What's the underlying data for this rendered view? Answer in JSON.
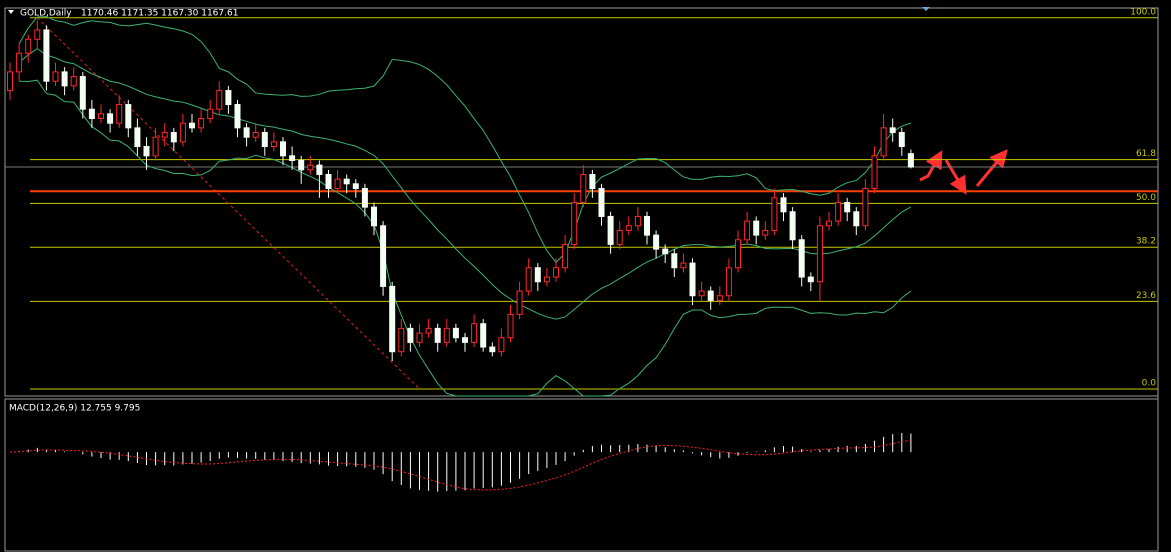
{
  "chart_data": {
    "type": "candlestick",
    "symbol": "GOLD,Daily",
    "ohlc_text": "1170.46 1171.35 1167.30 1167.61",
    "candles": [
      [
        1184,
        1190,
        1182,
        1188
      ],
      [
        1188,
        1194,
        1186,
        1192
      ],
      [
        1192,
        1196,
        1190,
        1195
      ],
      [
        1195,
        1199,
        1193,
        1197
      ],
      [
        1197,
        1198,
        1184,
        1186
      ],
      [
        1186,
        1190,
        1185,
        1188
      ],
      [
        1188,
        1189,
        1183,
        1185
      ],
      [
        1185,
        1189,
        1184,
        1187
      ],
      [
        1187,
        1188,
        1178,
        1180
      ],
      [
        1180,
        1182,
        1176,
        1178
      ],
      [
        1178,
        1181,
        1177,
        1179
      ],
      [
        1179,
        1180,
        1175,
        1177
      ],
      [
        1177,
        1183,
        1176,
        1181
      ],
      [
        1181,
        1182,
        1174,
        1176
      ],
      [
        1176,
        1178,
        1170,
        1172
      ],
      [
        1172,
        1174,
        1167,
        1170
      ],
      [
        1170,
        1176,
        1169,
        1174
      ],
      [
        1174,
        1177,
        1172,
        1175
      ],
      [
        1175,
        1176,
        1171,
        1173
      ],
      [
        1173,
        1179,
        1172,
        1177
      ],
      [
        1177,
        1179,
        1175,
        1176
      ],
      [
        1176,
        1180,
        1175,
        1178
      ],
      [
        1178,
        1182,
        1177,
        1180
      ],
      [
        1180,
        1186,
        1179,
        1184
      ],
      [
        1184,
        1185,
        1179,
        1181
      ],
      [
        1181,
        1182,
        1174,
        1176
      ],
      [
        1176,
        1177,
        1172,
        1174
      ],
      [
        1174,
        1177,
        1173,
        1175
      ],
      [
        1175,
        1176,
        1170,
        1172
      ],
      [
        1172,
        1175,
        1171,
        1173
      ],
      [
        1173,
        1174,
        1168,
        1170
      ],
      [
        1170,
        1172,
        1167,
        1169
      ],
      [
        1169,
        1170,
        1164,
        1167
      ],
      [
        1167,
        1170,
        1166,
        1168
      ],
      [
        1168,
        1169,
        1161,
        1166
      ],
      [
        1166,
        1167,
        1161,
        1163
      ],
      [
        1163,
        1167,
        1162,
        1165
      ],
      [
        1165,
        1166,
        1162,
        1164
      ],
      [
        1164,
        1165,
        1161,
        1163
      ],
      [
        1163,
        1164,
        1157,
        1159
      ],
      [
        1159,
        1160,
        1153,
        1155
      ],
      [
        1155,
        1156,
        1140,
        1142
      ],
      [
        1142,
        1143,
        1126,
        1128
      ],
      [
        1128,
        1135,
        1127,
        1133
      ],
      [
        1133,
        1134,
        1128,
        1130
      ],
      [
        1130,
        1134,
        1129,
        1132
      ],
      [
        1132,
        1135,
        1131,
        1133
      ],
      [
        1133,
        1134,
        1128,
        1130
      ],
      [
        1130,
        1135,
        1129,
        1133
      ],
      [
        1133,
        1134,
        1130,
        1131
      ],
      [
        1131,
        1132,
        1128,
        1130
      ],
      [
        1130,
        1136,
        1129,
        1134
      ],
      [
        1134,
        1135,
        1128,
        1129
      ],
      [
        1129,
        1130,
        1127,
        1128
      ],
      [
        1128,
        1133,
        1127,
        1131
      ],
      [
        1131,
        1138,
        1130,
        1136
      ],
      [
        1136,
        1143,
        1135,
        1141
      ],
      [
        1141,
        1148,
        1140,
        1146
      ],
      [
        1146,
        1147,
        1141,
        1143
      ],
      [
        1143,
        1146,
        1142,
        1144
      ],
      [
        1144,
        1148,
        1143,
        1146
      ],
      [
        1146,
        1153,
        1145,
        1151
      ],
      [
        1151,
        1162,
        1150,
        1160
      ],
      [
        1160,
        1168,
        1159,
        1166
      ],
      [
        1166,
        1167,
        1161,
        1163
      ],
      [
        1163,
        1164,
        1155,
        1157
      ],
      [
        1157,
        1158,
        1149,
        1151
      ],
      [
        1151,
        1156,
        1150,
        1154
      ],
      [
        1154,
        1157,
        1153,
        1155
      ],
      [
        1155,
        1159,
        1154,
        1157
      ],
      [
        1157,
        1158,
        1151,
        1153
      ],
      [
        1153,
        1154,
        1148,
        1150
      ],
      [
        1150,
        1151,
        1147,
        1149
      ],
      [
        1149,
        1150,
        1144,
        1146
      ],
      [
        1146,
        1149,
        1145,
        1147
      ],
      [
        1147,
        1148,
        1138,
        1140
      ],
      [
        1140,
        1143,
        1139,
        1141
      ],
      [
        1141,
        1142,
        1137,
        1139
      ],
      [
        1139,
        1142,
        1138,
        1140
      ],
      [
        1140,
        1148,
        1139,
        1146
      ],
      [
        1146,
        1154,
        1145,
        1152
      ],
      [
        1152,
        1158,
        1151,
        1156
      ],
      [
        1156,
        1157,
        1151,
        1153
      ],
      [
        1153,
        1156,
        1152,
        1154
      ],
      [
        1154,
        1163,
        1153,
        1161
      ],
      [
        1161,
        1162,
        1156,
        1158
      ],
      [
        1158,
        1159,
        1150,
        1152
      ],
      [
        1152,
        1153,
        1142,
        1144
      ],
      [
        1144,
        1145,
        1141,
        1143
      ],
      [
        1143,
        1157,
        1139,
        1155
      ],
      [
        1155,
        1158,
        1154,
        1156
      ],
      [
        1156,
        1162,
        1155,
        1160
      ],
      [
        1160,
        1161,
        1156,
        1158
      ],
      [
        1158,
        1159,
        1153,
        1155
      ],
      [
        1155,
        1165,
        1154,
        1163
      ],
      [
        1163,
        1172,
        1162,
        1170
      ],
      [
        1170,
        1179,
        1169,
        1176
      ],
      [
        1176,
        1178,
        1173,
        1175
      ],
      [
        1175,
        1176,
        1170,
        1172
      ],
      [
        1170.46,
        1171.35,
        1167.3,
        1167.61
      ]
    ],
    "ylim": [
      1118.5,
      1201.7
    ],
    "bull_color": "#ff2828",
    "bear_color": "#f4fff4",
    "bands": {
      "period": 20,
      "deviation": 2,
      "color": "#3cb371"
    },
    "level_line": {
      "price": 1162.4,
      "color": "#ff4000"
    },
    "bid_color": "#7a7a7a",
    "fibonacci": {
      "from_index": 3,
      "from_price": 1199.6,
      "to_index": 45,
      "to_price": 1120,
      "color": "#c8c800",
      "line_color": "#e02020",
      "levels": [
        {
          "value": 100,
          "label": "100.0"
        },
        {
          "value": 61.8,
          "label": "61.8"
        },
        {
          "value": 50,
          "label": "50.0"
        },
        {
          "value": 38.2,
          "label": "38.2"
        },
        {
          "value": 23.6,
          "label": "23.6"
        },
        {
          "value": 0,
          "label": "0.0"
        }
      ]
    },
    "macd": {
      "title": "MACD(12,26,9) 12.755 9.795",
      "fast": 12,
      "slow": 26,
      "signal": 9,
      "ylim": [
        -30,
        16
      ],
      "hist_color": "#ffffff",
      "signal_color": "#ff2020"
    }
  }
}
